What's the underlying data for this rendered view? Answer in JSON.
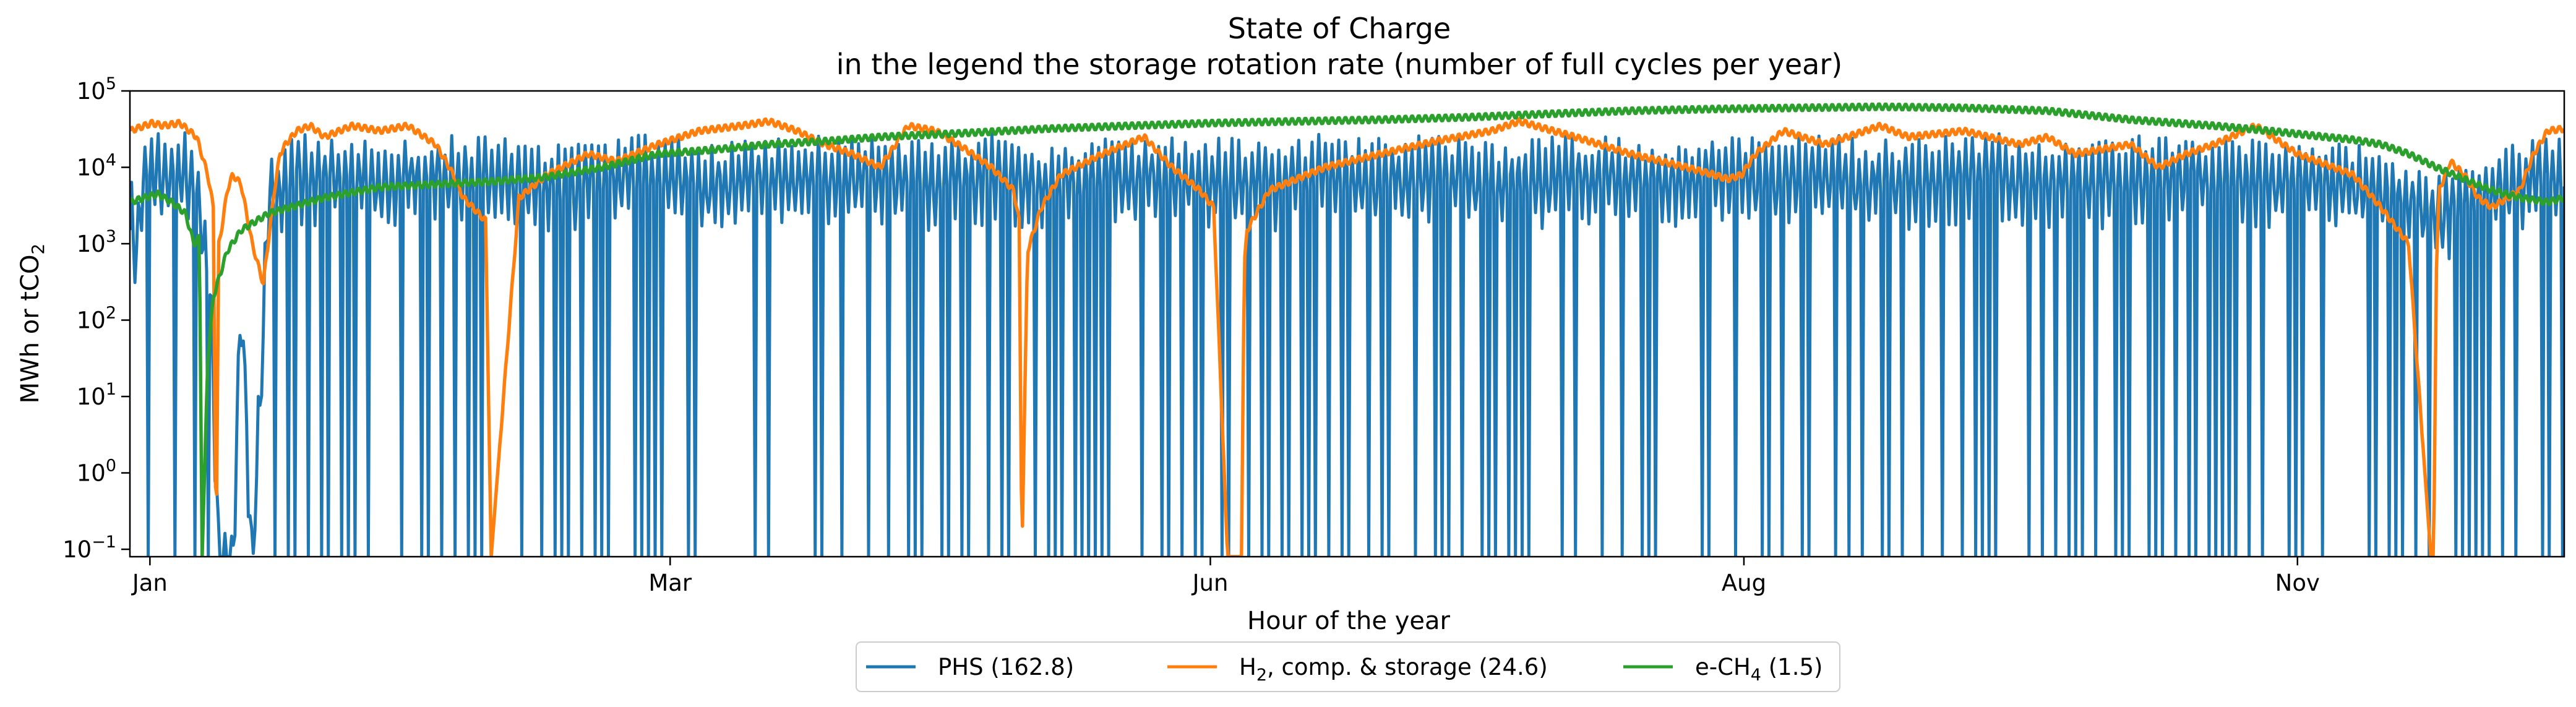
{
  "chart_data": {
    "type": "line",
    "title": "State of Charge",
    "subtitle": "in the legend the storage rotation rate (number of full cycles per year)",
    "xlabel": "Hour of the year",
    "ylabel": "MWh or tCO2",
    "yscale": "log",
    "xlim": [
      0,
      8760
    ],
    "ylim": [
      0.08,
      100000
    ],
    "x_ticks": [
      {
        "x": 72,
        "label": "Jan"
      },
      {
        "x": 1944,
        "label": "Mar"
      },
      {
        "x": 3888,
        "label": "Jun"
      },
      {
        "x": 5808,
        "label": "Aug"
      },
      {
        "x": 7800,
        "label": "Nov"
      }
    ],
    "y_ticks": [
      {
        "y": 0.1,
        "base": "10",
        "exp": "−1"
      },
      {
        "y": 1,
        "base": "10",
        "exp": "0"
      },
      {
        "y": 10,
        "base": "10",
        "exp": "1"
      },
      {
        "y": 100,
        "base": "10",
        "exp": "2"
      },
      {
        "y": 1000,
        "base": "10",
        "exp": "3"
      },
      {
        "y": 10000,
        "base": "10",
        "exp": "4"
      },
      {
        "y": 100000,
        "base": "10",
        "exp": "5"
      }
    ],
    "grid": false,
    "legend_position": "bottom-center",
    "series": [
      {
        "name": "PHS (162.8)",
        "color": "#1f77b4",
        "style": "oscillating",
        "x": [
          0,
          24,
          48,
          96,
          120,
          200,
          240,
          290,
          320,
          370,
          400,
          440,
          500,
          600,
          700,
          900,
          1100,
          1300,
          1500,
          1700,
          1900,
          2100,
          2300,
          2500,
          2700,
          2900,
          3100,
          3300,
          3500,
          3700,
          3900,
          4100,
          4300,
          4500,
          4700,
          4900,
          5100,
          5300,
          5500,
          5700,
          5900,
          6100,
          6300,
          6500,
          6700,
          6900,
          7100,
          7300,
          7500,
          7700,
          7900,
          8100,
          8300,
          8500,
          8700,
          8760
        ],
        "y": [
          3000,
          1200,
          8000,
          12000,
          9000,
          11000,
          7000,
          300,
          0.08,
          0.08,
          300,
          0.08,
          5000,
          10000,
          9000,
          8000,
          10000,
          9000,
          7000,
          9000,
          10000,
          8000,
          9000,
          10000,
          9000,
          8000,
          10000,
          7000,
          9000,
          10000,
          9000,
          8000,
          10000,
          9000,
          10000,
          8000,
          9000,
          10000,
          8000,
          10000,
          9000,
          10000,
          8000,
          9000,
          10000,
          9000,
          8000,
          10000,
          9000,
          8000,
          9000,
          6000,
          3000,
          6000,
          12000,
          9000
        ]
      },
      {
        "name": "H2, comp. & storage (24.6)",
        "color": "#ff7f0e",
        "style": "smooth",
        "x": [
          0,
          80,
          120,
          180,
          240,
          280,
          300,
          310,
          320,
          335,
          350,
          370,
          400,
          440,
          480,
          520,
          540,
          560,
          600,
          650,
          700,
          800,
          900,
          1000,
          1100,
          1150,
          1200,
          1280,
          1300,
          1400,
          1500,
          1650,
          1750,
          1900,
          2050,
          2200,
          2300,
          2400,
          2500,
          2600,
          2700,
          2800,
          2900,
          3000,
          3100,
          3180,
          3200,
          3210,
          3230,
          3280,
          3350,
          3500,
          3650,
          3750,
          3850,
          3900,
          3950,
          4000,
          4010,
          4020,
          4100,
          4300,
          4500,
          4700,
          4900,
          5000,
          5200,
          5400,
          5600,
          5700,
          5750,
          5800,
          5850,
          5950,
          6100,
          6300,
          6400,
          6600,
          6800,
          6900,
          7000,
          7200,
          7300,
          7400,
          7500,
          7650,
          7800,
          8000,
          8100,
          8200,
          8280,
          8290,
          8300,
          8310,
          8350,
          8400,
          8450,
          8500,
          8600,
          8650,
          8700,
          8760
        ],
        "y": [
          30000,
          38000,
          35000,
          38000,
          25000,
          8000,
          3000,
          0.08,
          1000,
          2000,
          5000,
          8000,
          6000,
          1000,
          300,
          5000,
          15000,
          20000,
          30000,
          35000,
          25000,
          35000,
          30000,
          35000,
          20000,
          10000,
          4000,
          2000,
          0.08,
          4000,
          8000,
          15000,
          12000,
          20000,
          30000,
          35000,
          40000,
          30000,
          20000,
          15000,
          10000,
          35000,
          30000,
          18000,
          10000,
          5000,
          2000,
          0.08,
          800,
          3000,
          8000,
          15000,
          25000,
          10000,
          5000,
          3000,
          0.08,
          0.08,
          500,
          1500,
          5000,
          10000,
          15000,
          22000,
          30000,
          40000,
          25000,
          15000,
          10000,
          8000,
          7000,
          8000,
          15000,
          30000,
          20000,
          35000,
          25000,
          30000,
          20000,
          25000,
          15000,
          20000,
          10000,
          15000,
          20000,
          35000,
          15000,
          8000,
          3000,
          1000,
          0.08,
          0.08,
          500,
          5000,
          12000,
          8000,
          4000,
          3000,
          5000,
          15000,
          30000,
          32000
        ]
      },
      {
        "name": "e-CH4 (1.5)",
        "color": "#2ca02c",
        "style": "smooth",
        "x": [
          0,
          100,
          150,
          200,
          230,
          240,
          250,
          260,
          280,
          300,
          350,
          400,
          500,
          700,
          900,
          1100,
          1300,
          1500,
          1700,
          1900,
          2100,
          2300,
          2500,
          2700,
          3000,
          3300,
          3600,
          3900,
          4200,
          4500,
          4800,
          5100,
          5400,
          5700,
          6000,
          6300,
          6600,
          6900,
          7200,
          7500,
          7700,
          7900,
          8000,
          8100,
          8200,
          8300,
          8400,
          8500,
          8600,
          8700,
          8760
        ],
        "y": [
          3500,
          4500,
          3500,
          2500,
          1000,
          1100,
          1200,
          0.08,
          30,
          200,
          800,
          1500,
          2500,
          4000,
          5500,
          6000,
          6500,
          7500,
          10000,
          15000,
          17000,
          20000,
          22000,
          25000,
          28000,
          32000,
          35000,
          38000,
          40000,
          42000,
          45000,
          50000,
          55000,
          58000,
          60000,
          62000,
          60000,
          55000,
          42000,
          35000,
          30000,
          25000,
          23000,
          20000,
          15000,
          10000,
          7000,
          5000,
          4000,
          3500,
          4000
        ]
      }
    ]
  }
}
